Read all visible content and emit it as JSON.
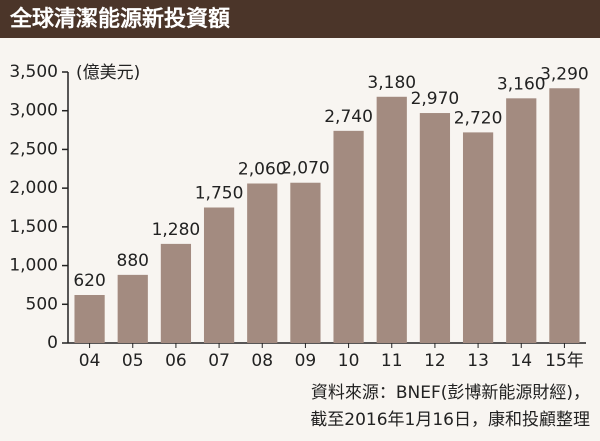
{
  "chart_data": {
    "type": "bar",
    "title": "全球清潔能源新投資額",
    "unit_label": "(億美元)",
    "categories": [
      "04",
      "05",
      "06",
      "07",
      "08",
      "09",
      "10",
      "11",
      "12",
      "13",
      "14",
      "15年"
    ],
    "values": [
      620,
      880,
      1280,
      1750,
      2060,
      2070,
      2740,
      3180,
      2970,
      2720,
      3160,
      3290
    ],
    "value_labels": [
      "620",
      "880",
      "1,280",
      "1,750",
      "2,060",
      "2,070",
      "2,740",
      "3,180",
      "2,970",
      "2,720",
      "3,160",
      "3,290"
    ],
    "color": "#a38b80",
    "ylim": [
      0,
      3500
    ],
    "yticks": [
      0,
      500,
      {
        "value": 1000,
        "label": "1,000"
      },
      {
        "value": 1500,
        "label": "1,500"
      },
      {
        "value": 2000,
        "label": "2,000"
      },
      {
        "value": 2500,
        "label": "2,500"
      },
      {
        "value": 3000,
        "label": "3,000"
      },
      {
        "value": 3500,
        "label": "3,500"
      }
    ],
    "source": [
      "資料來源：BNEF(彭博新能源財經)，",
      "截至2016年1月16日，康和投顧整理"
    ]
  }
}
